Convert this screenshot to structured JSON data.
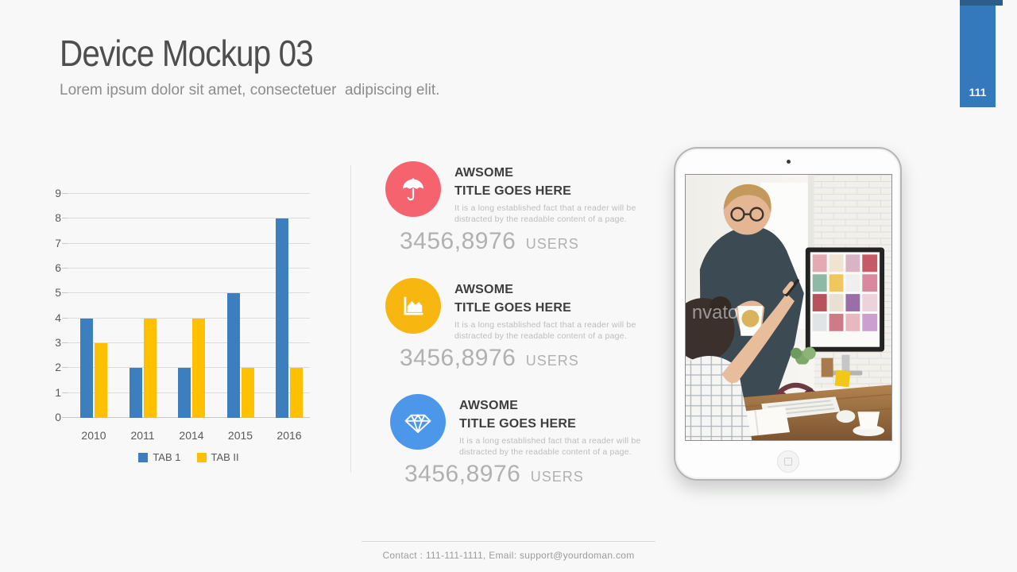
{
  "slide": {
    "title": "Device Mockup 03",
    "subtitle": "Lorem ipsum dolor sit amet, consectetuer  adipiscing elit.",
    "page_number": "111"
  },
  "chart_data": {
    "type": "bar",
    "categories": [
      "2010",
      "2011",
      "2014",
      "2015",
      "2016"
    ],
    "series": [
      {
        "name": "TAB 1",
        "color": "#3D7EBF",
        "values": [
          4,
          2,
          2,
          5,
          8
        ]
      },
      {
        "name": "TAB II",
        "color": "#FFC000",
        "values": [
          3,
          4,
          4,
          2,
          2
        ]
      }
    ],
    "title": "",
    "xlabel": "",
    "ylabel": "",
    "ylim": [
      0,
      9
    ],
    "yticks": [
      0,
      1,
      2,
      3,
      4,
      5,
      6,
      7,
      8,
      9
    ],
    "grid": true,
    "legend_position": "bottom"
  },
  "features": [
    {
      "icon": "umbrella-icon",
      "circle_color": "#F5636F",
      "title_line1": "AWSOME",
      "title_line2": "TITLE GOES HERE",
      "description": "It is a long established fact that a reader will be distracted by the readable content of a page.",
      "stat_value": "3456,8976",
      "stat_unit": "USERS"
    },
    {
      "icon": "area-chart-icon",
      "circle_color": "#F8B710",
      "title_line1": "AWSOME",
      "title_line2": "TITLE GOES HERE",
      "description": "It is a long established fact that a reader will be distracted by the readable content of a page.",
      "stat_value": "3456,8976",
      "stat_unit": "USERS"
    },
    {
      "icon": "diamond-icon",
      "circle_color": "#4D97EA",
      "title_line1": "AWSOME",
      "title_line2": "TITLE GOES HERE",
      "description": "It is a long established fact that a reader will be distracted by the readable content of a page.",
      "stat_value": "3456,8976",
      "stat_unit": "USERS"
    }
  ],
  "tablet": {
    "watermark": "nvato"
  },
  "footer": {
    "contact": "Contact : 111-111-1111, Email: support@yourdoman.com"
  }
}
